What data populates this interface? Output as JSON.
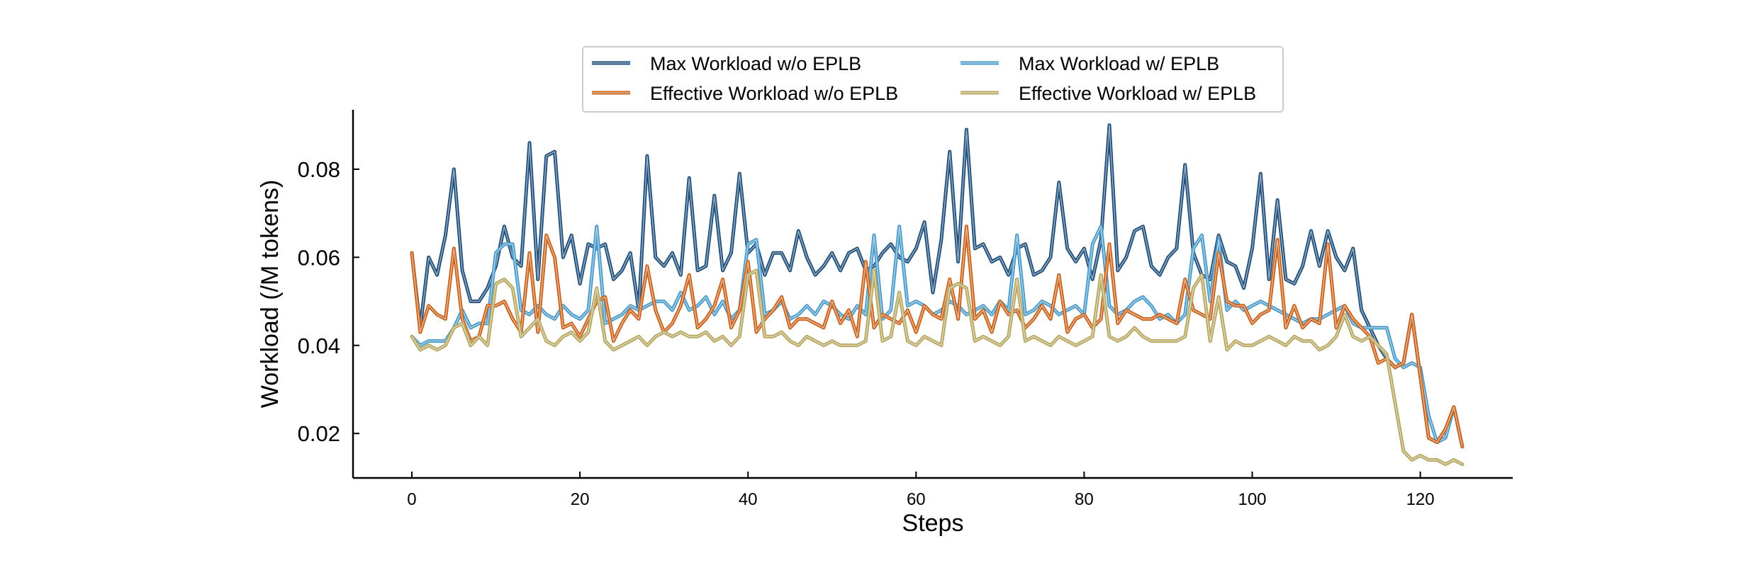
{
  "chart_data": {
    "type": "line",
    "title": "",
    "xlabel": "Steps",
    "ylabel": "Workload (/M tokens)",
    "xlim": [
      -7,
      131
    ],
    "ylim": [
      0.0099,
      0.0935
    ],
    "xticks": [
      0,
      20,
      40,
      60,
      80,
      100,
      120
    ],
    "xtick_labels": [
      "0",
      "20",
      "40",
      "60",
      "80",
      "100",
      "120"
    ],
    "yticks": [
      0.02,
      0.04,
      0.06,
      0.08
    ],
    "ytick_labels": [
      "0.02",
      "0.04",
      "0.06",
      "0.08"
    ],
    "grid": false,
    "legend_position": "top-center",
    "series": [
      {
        "name": "Max Workload w/o EPLB",
        "color": "#1f4f7a",
        "x": [
          0,
          1,
          2,
          3,
          4,
          5,
          6,
          7,
          8,
          9,
          10,
          11,
          12,
          13,
          14,
          15,
          16,
          17,
          18,
          19,
          20,
          21,
          22,
          23,
          24,
          25,
          26,
          27,
          28,
          29,
          30,
          31,
          32,
          33,
          34,
          35,
          36,
          37,
          38,
          39,
          40,
          41,
          42,
          43,
          44,
          45,
          46,
          47,
          48,
          49,
          50,
          51,
          52,
          53,
          54,
          55,
          56,
          57,
          58,
          59,
          60,
          61,
          62,
          63,
          64,
          65,
          66,
          67,
          68,
          69,
          70,
          71,
          72,
          73,
          74,
          75,
          76,
          77,
          78,
          79,
          80,
          81,
          82,
          83,
          84,
          85,
          86,
          87,
          88,
          89,
          90,
          91,
          92,
          93,
          94,
          95,
          96,
          97,
          98,
          99,
          100,
          101,
          102,
          103,
          104,
          105,
          106,
          107,
          108,
          109,
          110,
          111,
          112,
          113,
          114,
          115,
          116,
          117,
          118,
          119,
          120,
          121,
          122,
          123,
          124,
          125
        ],
        "values": [
          0.061,
          0.044,
          0.06,
          0.056,
          0.065,
          0.08,
          0.057,
          0.05,
          0.05,
          0.053,
          0.058,
          0.067,
          0.06,
          0.058,
          0.086,
          0.055,
          0.083,
          0.084,
          0.06,
          0.065,
          0.054,
          0.063,
          0.062,
          0.063,
          0.055,
          0.057,
          0.061,
          0.048,
          0.083,
          0.06,
          0.058,
          0.061,
          0.056,
          0.078,
          0.057,
          0.058,
          0.074,
          0.057,
          0.061,
          0.079,
          0.061,
          0.063,
          0.056,
          0.061,
          0.061,
          0.057,
          0.066,
          0.06,
          0.056,
          0.058,
          0.061,
          0.057,
          0.061,
          0.062,
          0.057,
          0.058,
          0.061,
          0.063,
          0.06,
          0.059,
          0.062,
          0.068,
          0.052,
          0.064,
          0.084,
          0.059,
          0.089,
          0.062,
          0.063,
          0.059,
          0.06,
          0.056,
          0.062,
          0.063,
          0.056,
          0.057,
          0.06,
          0.077,
          0.062,
          0.059,
          0.062,
          0.055,
          0.064,
          0.09,
          0.057,
          0.06,
          0.066,
          0.067,
          0.058,
          0.056,
          0.06,
          0.062,
          0.081,
          0.061,
          0.056,
          0.055,
          0.065,
          0.059,
          0.058,
          0.053,
          0.062,
          0.079,
          0.055,
          0.073,
          0.055,
          0.054,
          0.058,
          0.066,
          0.058,
          0.066,
          0.06,
          0.057,
          0.062,
          0.048,
          0.044,
          0.04,
          0.037,
          0.035,
          0.036,
          0.047,
          0.033,
          0.019,
          0.018,
          0.021,
          0.026,
          0.017
        ]
      },
      {
        "name": "Max Workload w/ EPLB",
        "color": "#4a9bc9",
        "x": [
          0,
          1,
          2,
          3,
          4,
          5,
          6,
          7,
          8,
          9,
          10,
          11,
          12,
          13,
          14,
          15,
          16,
          17,
          18,
          19,
          20,
          21,
          22,
          23,
          24,
          25,
          26,
          27,
          28,
          29,
          30,
          31,
          32,
          33,
          34,
          35,
          36,
          37,
          38,
          39,
          40,
          41,
          42,
          43,
          44,
          45,
          46,
          47,
          48,
          49,
          50,
          51,
          52,
          53,
          54,
          55,
          56,
          57,
          58,
          59,
          60,
          61,
          62,
          63,
          64,
          65,
          66,
          67,
          68,
          69,
          70,
          71,
          72,
          73,
          74,
          75,
          76,
          77,
          78,
          79,
          80,
          81,
          82,
          83,
          84,
          85,
          86,
          87,
          88,
          89,
          90,
          91,
          92,
          93,
          94,
          95,
          96,
          97,
          98,
          99,
          100,
          101,
          102,
          103,
          104,
          105,
          106,
          107,
          108,
          109,
          110,
          111,
          112,
          113,
          114,
          115,
          116,
          117,
          118,
          119,
          120,
          121,
          122,
          123,
          124,
          125
        ],
        "values": [
          0.042,
          0.04,
          0.041,
          0.041,
          0.041,
          0.044,
          0.048,
          0.044,
          0.045,
          0.045,
          0.061,
          0.063,
          0.063,
          0.048,
          0.047,
          0.049,
          0.047,
          0.046,
          0.049,
          0.047,
          0.046,
          0.048,
          0.067,
          0.045,
          0.046,
          0.047,
          0.049,
          0.048,
          0.049,
          0.05,
          0.05,
          0.048,
          0.052,
          0.048,
          0.049,
          0.051,
          0.047,
          0.05,
          0.046,
          0.048,
          0.063,
          0.064,
          0.047,
          0.048,
          0.05,
          0.046,
          0.047,
          0.049,
          0.047,
          0.05,
          0.049,
          0.047,
          0.046,
          0.049,
          0.047,
          0.065,
          0.046,
          0.048,
          0.067,
          0.049,
          0.05,
          0.049,
          0.047,
          0.048,
          0.05,
          0.049,
          0.047,
          0.048,
          0.049,
          0.047,
          0.05,
          0.048,
          0.065,
          0.047,
          0.048,
          0.05,
          0.049,
          0.047,
          0.048,
          0.049,
          0.047,
          0.063,
          0.067,
          0.049,
          0.047,
          0.048,
          0.05,
          0.051,
          0.049,
          0.046,
          0.047,
          0.045,
          0.047,
          0.062,
          0.065,
          0.05,
          0.064,
          0.048,
          0.05,
          0.048,
          0.049,
          0.05,
          0.049,
          0.048,
          0.047,
          0.046,
          0.045,
          0.046,
          0.046,
          0.047,
          0.048,
          0.049,
          0.045,
          0.044,
          0.044,
          0.044,
          0.044,
          0.037,
          0.035,
          0.036,
          0.035,
          0.024,
          0.018,
          0.019,
          0.026,
          0.017
        ]
      },
      {
        "name": "Effective Workload w/o EPLB",
        "color": "#c9621b",
        "x": [
          0,
          1,
          2,
          3,
          4,
          5,
          6,
          7,
          8,
          9,
          10,
          11,
          12,
          13,
          14,
          15,
          16,
          17,
          18,
          19,
          20,
          21,
          22,
          23,
          24,
          25,
          26,
          27,
          28,
          29,
          30,
          31,
          32,
          33,
          34,
          35,
          36,
          37,
          38,
          39,
          40,
          41,
          42,
          43,
          44,
          45,
          46,
          47,
          48,
          49,
          50,
          51,
          52,
          53,
          54,
          55,
          56,
          57,
          58,
          59,
          60,
          61,
          62,
          63,
          64,
          65,
          66,
          67,
          68,
          69,
          70,
          71,
          72,
          73,
          74,
          75,
          76,
          77,
          78,
          79,
          80,
          81,
          82,
          83,
          84,
          85,
          86,
          87,
          88,
          89,
          90,
          91,
          92,
          93,
          94,
          95,
          96,
          97,
          98,
          99,
          100,
          101,
          102,
          103,
          104,
          105,
          106,
          107,
          108,
          109,
          110,
          111,
          112,
          113,
          114,
          115,
          116,
          117,
          118,
          119,
          120,
          121,
          122,
          123,
          124,
          125
        ],
        "values": [
          0.061,
          0.043,
          0.049,
          0.047,
          0.046,
          0.062,
          0.046,
          0.041,
          0.042,
          0.049,
          0.049,
          0.05,
          0.046,
          0.043,
          0.061,
          0.043,
          0.065,
          0.06,
          0.044,
          0.045,
          0.042,
          0.046,
          0.05,
          0.051,
          0.041,
          0.045,
          0.048,
          0.046,
          0.058,
          0.048,
          0.043,
          0.045,
          0.049,
          0.056,
          0.044,
          0.046,
          0.049,
          0.055,
          0.044,
          0.048,
          0.059,
          0.043,
          0.046,
          0.048,
          0.051,
          0.044,
          0.046,
          0.046,
          0.045,
          0.044,
          0.05,
          0.045,
          0.048,
          0.042,
          0.059,
          0.044,
          0.047,
          0.046,
          0.045,
          0.048,
          0.043,
          0.049,
          0.047,
          0.046,
          0.055,
          0.046,
          0.067,
          0.046,
          0.048,
          0.043,
          0.05,
          0.047,
          0.048,
          0.044,
          0.046,
          0.049,
          0.046,
          0.056,
          0.043,
          0.046,
          0.047,
          0.044,
          0.046,
          0.063,
          0.045,
          0.048,
          0.047,
          0.046,
          0.046,
          0.047,
          0.046,
          0.045,
          0.055,
          0.048,
          0.047,
          0.046,
          0.061,
          0.05,
          0.049,
          0.049,
          0.045,
          0.047,
          0.048,
          0.064,
          0.044,
          0.049,
          0.044,
          0.046,
          0.045,
          0.063,
          0.044,
          0.049,
          0.046,
          0.044,
          0.042,
          0.036,
          0.037,
          0.035,
          0.036,
          0.047,
          0.033,
          0.019,
          0.018,
          0.021,
          0.026,
          0.017
        ]
      },
      {
        "name": "Effective Workload w/ EPLB",
        "color": "#b7a761",
        "x": [
          0,
          1,
          2,
          3,
          4,
          5,
          6,
          7,
          8,
          9,
          10,
          11,
          12,
          13,
          14,
          15,
          16,
          17,
          18,
          19,
          20,
          21,
          22,
          23,
          24,
          25,
          26,
          27,
          28,
          29,
          30,
          31,
          32,
          33,
          34,
          35,
          36,
          37,
          38,
          39,
          40,
          41,
          42,
          43,
          44,
          45,
          46,
          47,
          48,
          49,
          50,
          51,
          52,
          53,
          54,
          55,
          56,
          57,
          58,
          59,
          60,
          61,
          62,
          63,
          64,
          65,
          66,
          67,
          68,
          69,
          70,
          71,
          72,
          73,
          74,
          75,
          76,
          77,
          78,
          79,
          80,
          81,
          82,
          83,
          84,
          85,
          86,
          87,
          88,
          89,
          90,
          91,
          92,
          93,
          94,
          95,
          96,
          97,
          98,
          99,
          100,
          101,
          102,
          103,
          104,
          105,
          106,
          107,
          108,
          109,
          110,
          111,
          112,
          113,
          114,
          115,
          116,
          117,
          118,
          119,
          120,
          121,
          122,
          123,
          124,
          125
        ],
        "values": [
          0.042,
          0.039,
          0.04,
          0.039,
          0.04,
          0.044,
          0.045,
          0.04,
          0.042,
          0.04,
          0.054,
          0.055,
          0.053,
          0.042,
          0.044,
          0.046,
          0.041,
          0.04,
          0.042,
          0.043,
          0.041,
          0.043,
          0.053,
          0.041,
          0.039,
          0.04,
          0.041,
          0.042,
          0.04,
          0.042,
          0.043,
          0.042,
          0.043,
          0.042,
          0.042,
          0.043,
          0.041,
          0.042,
          0.04,
          0.042,
          0.056,
          0.057,
          0.042,
          0.042,
          0.043,
          0.041,
          0.04,
          0.042,
          0.041,
          0.04,
          0.041,
          0.04,
          0.04,
          0.04,
          0.041,
          0.057,
          0.041,
          0.042,
          0.052,
          0.041,
          0.04,
          0.042,
          0.041,
          0.04,
          0.053,
          0.054,
          0.053,
          0.041,
          0.042,
          0.041,
          0.04,
          0.042,
          0.055,
          0.041,
          0.042,
          0.041,
          0.04,
          0.042,
          0.041,
          0.04,
          0.041,
          0.042,
          0.056,
          0.042,
          0.041,
          0.042,
          0.044,
          0.042,
          0.041,
          0.041,
          0.041,
          0.041,
          0.042,
          0.053,
          0.056,
          0.041,
          0.051,
          0.039,
          0.041,
          0.04,
          0.04,
          0.041,
          0.042,
          0.041,
          0.04,
          0.042,
          0.041,
          0.041,
          0.039,
          0.04,
          0.042,
          0.047,
          0.042,
          0.041,
          0.042,
          0.04,
          0.038,
          0.027,
          0.016,
          0.014,
          0.015,
          0.014,
          0.014,
          0.013,
          0.014,
          0.013
        ]
      }
    ]
  }
}
